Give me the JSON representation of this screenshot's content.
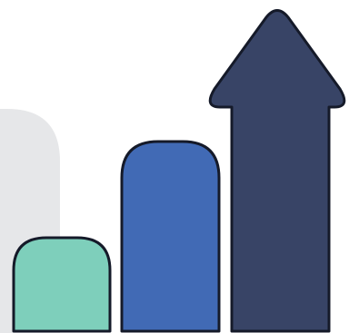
{
  "illustration": {
    "icon": "growth-bar-chart-with-up-arrow-icon",
    "colors": {
      "background": "#ffffff",
      "backdrop_panel": "#e6e7e9",
      "outline": "#151a29",
      "bar_short": "#7ecfbb",
      "bar_medium": "#416ab5",
      "arrow_bar": "#384466"
    }
  }
}
